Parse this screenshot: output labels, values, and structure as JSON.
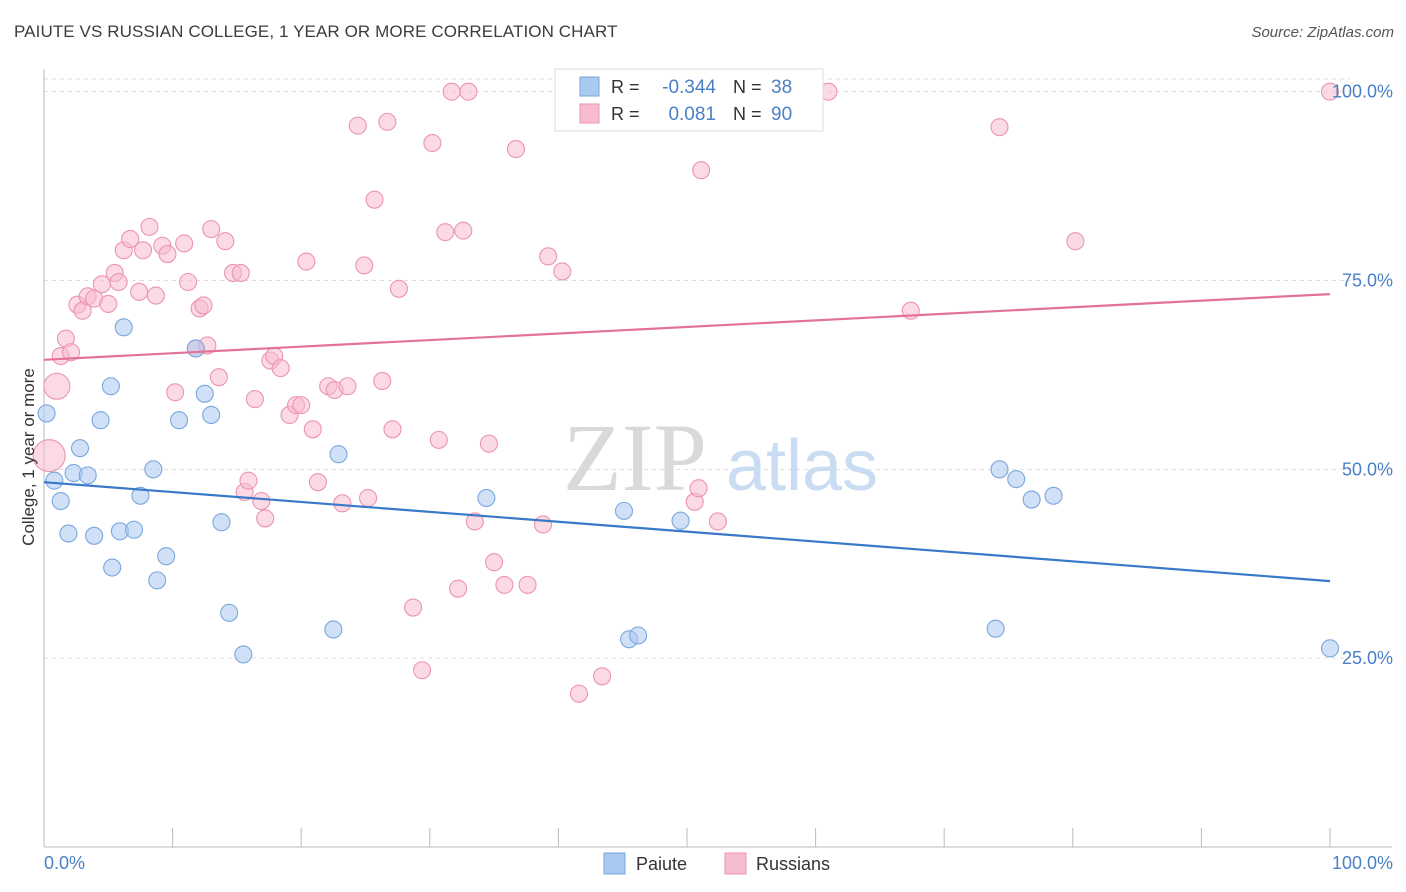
{
  "header": {
    "title": "PAIUTE VS RUSSIAN COLLEGE, 1 YEAR OR MORE CORRELATION CHART",
    "source": "Source: ZipAtlas.com"
  },
  "watermark": {
    "zip": "ZIP",
    "atlas": "atlas"
  },
  "colors": {
    "paiute_fill": "#a9c9f0",
    "paiute_stroke": "#7aa7dd",
    "paiute_line": "#3a78c9",
    "russians_fill": "#f7bccd",
    "russians_stroke": "#ec94b0",
    "russians_line": "#e2729a",
    "tick_label": "#4a7fc7",
    "grid": "#dddddd"
  },
  "stats_legend": {
    "rows": [
      {
        "r_label": "R =",
        "r_value": "-0.344",
        "n_label": "N =",
        "n_value": "38"
      },
      {
        "r_label": "R =",
        "r_value": "0.081",
        "n_label": "N =",
        "n_value": "90"
      }
    ]
  },
  "chart_data": {
    "type": "scatter",
    "title": "PAIUTE VS RUSSIAN COLLEGE, 1 YEAR OR MORE CORRELATION CHART",
    "xlabel": "",
    "ylabel": "College, 1 year or more",
    "xlim": [
      0,
      100
    ],
    "ylim": [
      0,
      103
    ],
    "x_tick_labels": [
      "0.0%",
      "100.0%"
    ],
    "y_ticks": [
      25,
      50,
      75,
      100
    ],
    "y_tick_labels": [
      "25.0%",
      "50.0%",
      "75.0%",
      "100.0%"
    ],
    "grid": true,
    "legend_position": "bottom-center",
    "series": [
      {
        "name": "Paiute",
        "color": "#a9c9f0",
        "trend": {
          "x": [
            0,
            100
          ],
          "y": [
            48.3,
            35.2
          ]
        },
        "points": [
          [
            0.2,
            57.4
          ],
          [
            0.8,
            48.5
          ],
          [
            1.3,
            45.8
          ],
          [
            1.9,
            41.5
          ],
          [
            2.3,
            49.5
          ],
          [
            2.8,
            52.8
          ],
          [
            3.4,
            49.2
          ],
          [
            3.9,
            41.2
          ],
          [
            4.4,
            56.5
          ],
          [
            5.2,
            61.0
          ],
          [
            5.3,
            37.0
          ],
          [
            5.9,
            41.8
          ],
          [
            6.2,
            68.8
          ],
          [
            7.0,
            42.0
          ],
          [
            7.5,
            46.5
          ],
          [
            8.5,
            50.0
          ],
          [
            8.8,
            35.3
          ],
          [
            9.5,
            38.5
          ],
          [
            10.5,
            56.5
          ],
          [
            11.8,
            66.0
          ],
          [
            12.5,
            60.0
          ],
          [
            13.0,
            57.2
          ],
          [
            13.8,
            43.0
          ],
          [
            14.4,
            31.0
          ],
          [
            15.5,
            25.5
          ],
          [
            22.5,
            28.8
          ],
          [
            22.9,
            52.0
          ],
          [
            34.4,
            46.2
          ],
          [
            45.1,
            44.5
          ],
          [
            45.5,
            27.5
          ],
          [
            46.2,
            28.0
          ],
          [
            49.5,
            43.2
          ],
          [
            74.0,
            28.9
          ],
          [
            74.3,
            50.0
          ],
          [
            75.6,
            48.7
          ],
          [
            76.8,
            46.0
          ],
          [
            78.5,
            46.5
          ],
          [
            100.0,
            26.3
          ]
        ]
      },
      {
        "name": "Russians",
        "color": "#f7bccd",
        "trend": {
          "x": [
            0,
            100
          ],
          "y": [
            64.5,
            73.2
          ]
        },
        "points": [
          [
            0.4,
            51.8
          ],
          [
            1.0,
            61.0
          ],
          [
            1.3,
            65.0
          ],
          [
            1.7,
            67.3
          ],
          [
            2.1,
            65.5
          ],
          [
            2.6,
            71.8
          ],
          [
            3.0,
            71.0
          ],
          [
            3.4,
            72.9
          ],
          [
            3.9,
            72.6
          ],
          [
            4.5,
            74.5
          ],
          [
            5.0,
            71.9
          ],
          [
            5.5,
            76.0
          ],
          [
            5.8,
            74.8
          ],
          [
            6.2,
            79.0
          ],
          [
            6.7,
            80.5
          ],
          [
            7.4,
            73.5
          ],
          [
            7.7,
            79.0
          ],
          [
            8.2,
            82.1
          ],
          [
            8.7,
            73.0
          ],
          [
            9.2,
            79.6
          ],
          [
            9.6,
            78.5
          ],
          [
            10.2,
            60.2
          ],
          [
            10.9,
            79.9
          ],
          [
            11.2,
            74.8
          ],
          [
            11.8,
            66.0
          ],
          [
            12.1,
            71.3
          ],
          [
            12.4,
            71.7
          ],
          [
            12.7,
            66.4
          ],
          [
            13.0,
            81.8
          ],
          [
            13.6,
            62.2
          ],
          [
            14.1,
            80.2
          ],
          [
            14.7,
            76.0
          ],
          [
            15.3,
            76.0
          ],
          [
            15.6,
            47.0
          ],
          [
            15.9,
            48.5
          ],
          [
            16.4,
            59.3
          ],
          [
            16.9,
            45.8
          ],
          [
            17.2,
            43.5
          ],
          [
            17.6,
            64.4
          ],
          [
            17.9,
            65.0
          ],
          [
            18.4,
            63.4
          ],
          [
            19.1,
            57.2
          ],
          [
            19.6,
            58.5
          ],
          [
            20.0,
            58.5
          ],
          [
            20.4,
            77.5
          ],
          [
            20.9,
            55.3
          ],
          [
            21.3,
            48.3
          ],
          [
            22.1,
            61.0
          ],
          [
            22.6,
            60.5
          ],
          [
            23.2,
            45.5
          ],
          [
            23.6,
            61.0
          ],
          [
            24.4,
            95.5
          ],
          [
            24.9,
            77.0
          ],
          [
            25.2,
            46.2
          ],
          [
            25.7,
            85.7
          ],
          [
            26.3,
            61.7
          ],
          [
            26.7,
            96.0
          ],
          [
            27.1,
            55.3
          ],
          [
            27.6,
            73.9
          ],
          [
            28.7,
            31.7
          ],
          [
            29.4,
            23.4
          ],
          [
            30.2,
            93.2
          ],
          [
            30.7,
            53.9
          ],
          [
            31.2,
            81.4
          ],
          [
            31.7,
            100.0
          ],
          [
            32.2,
            34.2
          ],
          [
            32.6,
            81.6
          ],
          [
            33.0,
            100.0
          ],
          [
            33.5,
            43.1
          ],
          [
            34.6,
            53.4
          ],
          [
            35.0,
            37.7
          ],
          [
            35.8,
            34.7
          ],
          [
            36.7,
            92.4
          ],
          [
            37.6,
            34.7
          ],
          [
            38.8,
            42.7
          ],
          [
            39.2,
            78.2
          ],
          [
            40.3,
            76.2
          ],
          [
            41.6,
            20.3
          ],
          [
            43.4,
            22.6
          ],
          [
            46.9,
            100.0
          ],
          [
            50.6,
            45.7
          ],
          [
            50.9,
            47.5
          ],
          [
            51.1,
            89.6
          ],
          [
            52.4,
            43.1
          ],
          [
            59.5,
            100.0
          ],
          [
            61.0,
            100.0
          ],
          [
            67.4,
            71.0
          ],
          [
            74.3,
            95.3
          ],
          [
            80.2,
            80.2
          ],
          [
            100.0,
            100.0
          ]
        ]
      }
    ]
  },
  "bottom_legend": {
    "items": [
      "Paiute",
      "Russians"
    ]
  }
}
